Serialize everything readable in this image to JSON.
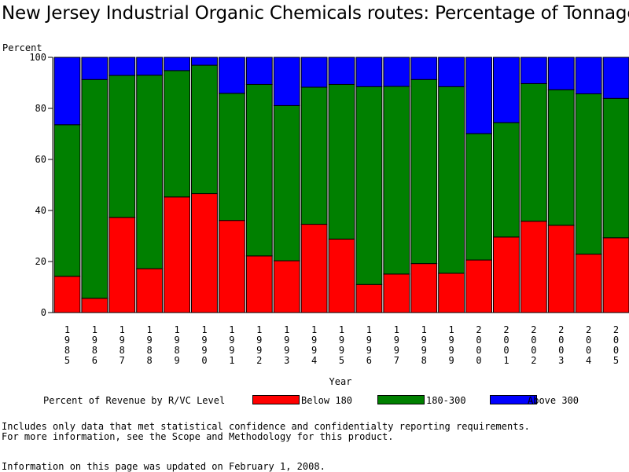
{
  "title": "New Jersey Industrial Organic Chemicals routes: Percentage of Tonnage",
  "colors": {
    "below180": "#ff0000",
    "mid": "#008000",
    "above300": "#0000ff"
  },
  "legend": {
    "title": "Percent of Revenue by R/VC Level",
    "items": [
      "Below 180",
      "180-300",
      "Above 300"
    ]
  },
  "notes": {
    "line1": "Includes only data that met statistical confidence and confidentialty reporting requirements.",
    "line2": "For more information, see the Scope and Methodology for this product.",
    "updated": "Information on this page was updated on February 1, 2008."
  },
  "chart_data": {
    "type": "bar",
    "stacked": true,
    "title": "New Jersey Industrial Organic Chemicals routes: Percentage of Tonnage",
    "xlabel": "Year",
    "ylabel": "Percent",
    "ylim": [
      0,
      100
    ],
    "yticks": [
      0,
      20,
      40,
      60,
      80,
      100
    ],
    "categories": [
      "1985",
      "1986",
      "1987",
      "1988",
      "1989",
      "1990",
      "1991",
      "1992",
      "1993",
      "1994",
      "1995",
      "1996",
      "1997",
      "1998",
      "1999",
      "2000",
      "2001",
      "2002",
      "2003",
      "2004",
      "2005"
    ],
    "series": [
      {
        "name": "Below 180",
        "color": "#ff0000",
        "values": [
          14.2,
          5.6,
          37.3,
          17.2,
          45.3,
          46.6,
          36.1,
          22.2,
          20.3,
          34.6,
          28.8,
          11.0,
          15.1,
          19.2,
          15.4,
          20.6,
          29.6,
          35.8,
          34.2,
          22.9,
          29.3
        ]
      },
      {
        "name": "180-300",
        "color": "#008000",
        "values": [
          59.4,
          85.7,
          55.6,
          75.8,
          49.5,
          50.3,
          49.8,
          67.2,
          60.8,
          53.7,
          60.6,
          77.5,
          73.5,
          72.1,
          73.1,
          49.5,
          44.8,
          53.9,
          53.1,
          62.8,
          54.6
        ]
      },
      {
        "name": "Above 300",
        "color": "#0000ff",
        "values": [
          26.4,
          8.7,
          7.1,
          7.0,
          5.2,
          3.1,
          14.1,
          10.6,
          18.9,
          11.7,
          10.6,
          11.5,
          11.4,
          8.7,
          11.5,
          29.9,
          25.6,
          10.3,
          12.7,
          14.3,
          16.1
        ]
      }
    ]
  }
}
